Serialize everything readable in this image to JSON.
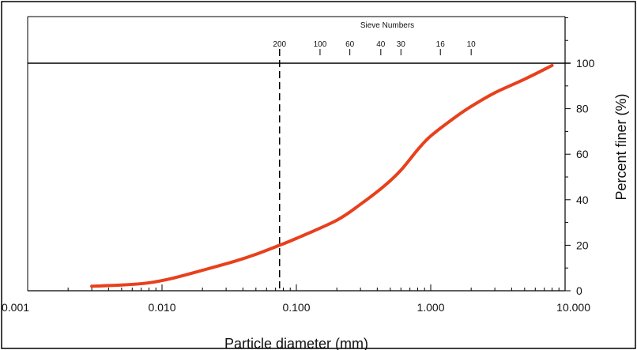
{
  "chart_data": {
    "type": "line",
    "title": "",
    "xlabel": "Particle diameter (mm)",
    "ylabel": "Percent finer (%)",
    "xscale": "log",
    "xlim": [
      0.001,
      10.0
    ],
    "ylim": [
      0,
      100
    ],
    "x_tick_labels": [
      {
        "value": 0.001,
        "label": "0.001"
      },
      {
        "value": 0.01,
        "label": "0.010"
      },
      {
        "value": 0.1,
        "label": "0.100"
      },
      {
        "value": 1.0,
        "label": "1.000"
      },
      {
        "value": 10.0,
        "label": "10.000"
      }
    ],
    "y_tick_labels": [
      {
        "value": 0,
        "label": "0"
      },
      {
        "value": 20,
        "label": "20"
      },
      {
        "value": 40,
        "label": "40"
      },
      {
        "value": 60,
        "label": "60"
      },
      {
        "value": 80,
        "label": "80"
      },
      {
        "value": 100,
        "label": "100"
      }
    ],
    "top_axis": {
      "title": "Sieve Numbers",
      "sieves": [
        {
          "label": "200",
          "opening_mm": 0.075
        },
        {
          "label": "100",
          "opening_mm": 0.15
        },
        {
          "label": "60",
          "opening_mm": 0.25
        },
        {
          "label": "40",
          "opening_mm": 0.425
        },
        {
          "label": "30",
          "opening_mm": 0.6
        },
        {
          "label": "16",
          "opening_mm": 1.18
        },
        {
          "label": "10",
          "opening_mm": 2.0
        }
      ]
    },
    "reference_lines": [
      {
        "orientation": "vertical",
        "x": 0.075,
        "style": "dashed"
      },
      {
        "orientation": "horizontal",
        "y": 100,
        "style": "solid"
      }
    ],
    "series": [
      {
        "color": "#e8401c",
        "points": [
          [
            0.003,
            2
          ],
          [
            0.005,
            2.5
          ],
          [
            0.008,
            3.5
          ],
          [
            0.012,
            5.5
          ],
          [
            0.02,
            9
          ],
          [
            0.035,
            13
          ],
          [
            0.05,
            16
          ],
          [
            0.075,
            20
          ],
          [
            0.1,
            23
          ],
          [
            0.2,
            31
          ],
          [
            0.3,
            38
          ],
          [
            0.45,
            46
          ],
          [
            0.6,
            53
          ],
          [
            0.8,
            62
          ],
          [
            1.0,
            68
          ],
          [
            1.5,
            76
          ],
          [
            2.0,
            81
          ],
          [
            3.0,
            87
          ],
          [
            5.0,
            93
          ],
          [
            8.0,
            99
          ]
        ]
      }
    ],
    "grid": false,
    "legend": "none"
  }
}
